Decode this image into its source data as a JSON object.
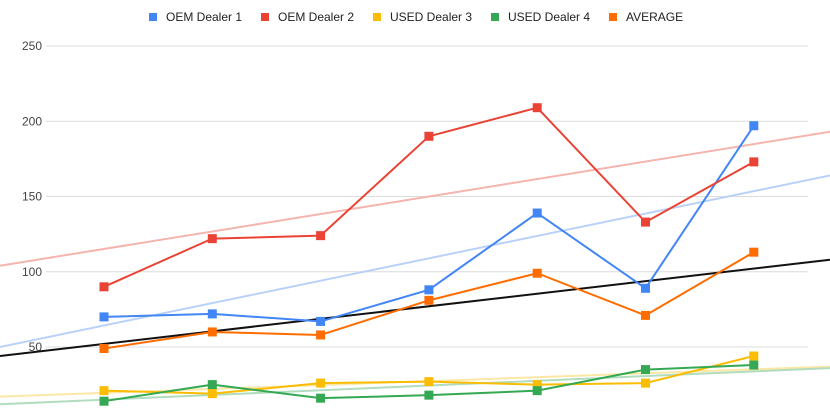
{
  "chart_data": {
    "type": "line",
    "title": "",
    "xlabel": "",
    "ylabel": "",
    "ylim": [
      13,
      258
    ],
    "y_ticks": [
      50,
      100,
      150,
      200,
      250
    ],
    "y_tick_labels": [
      "50",
      "100",
      "150",
      "200",
      "250"
    ],
    "grid": true,
    "legend_position": "top",
    "x_count": 7,
    "series": [
      {
        "name": "OEM Dealer 1",
        "color": "#4285F4",
        "trend_color": "#b9d1f9",
        "values": [
          70,
          72,
          67,
          88,
          139,
          89,
          197
        ],
        "trendline": [
          50,
          164
        ]
      },
      {
        "name": "OEM Dealer 2",
        "color": "#EA4335",
        "trend_color": "#f5b4ad",
        "values": [
          90,
          122,
          124,
          190,
          209,
          133,
          173
        ],
        "trendline": [
          104,
          193
        ]
      },
      {
        "name": "USED Dealer 3",
        "color": "#FBBC04",
        "trend_color": "#fbe7a6",
        "values": [
          21,
          19,
          26,
          27,
          25,
          26,
          44
        ],
        "trendline": [
          17,
          37
        ]
      },
      {
        "name": "USED Dealer 4",
        "color": "#34A853",
        "trend_color": "#b2dcbe",
        "values": [
          14,
          25,
          16,
          18,
          21,
          35,
          38
        ],
        "trendline": [
          12,
          36
        ]
      },
      {
        "name": "AVERAGE",
        "color": "#FF6D01",
        "trend_color": "#111111",
        "values": [
          49,
          60,
          58,
          81,
          99,
          71,
          113
        ],
        "trendline": [
          44,
          108
        ]
      }
    ]
  }
}
